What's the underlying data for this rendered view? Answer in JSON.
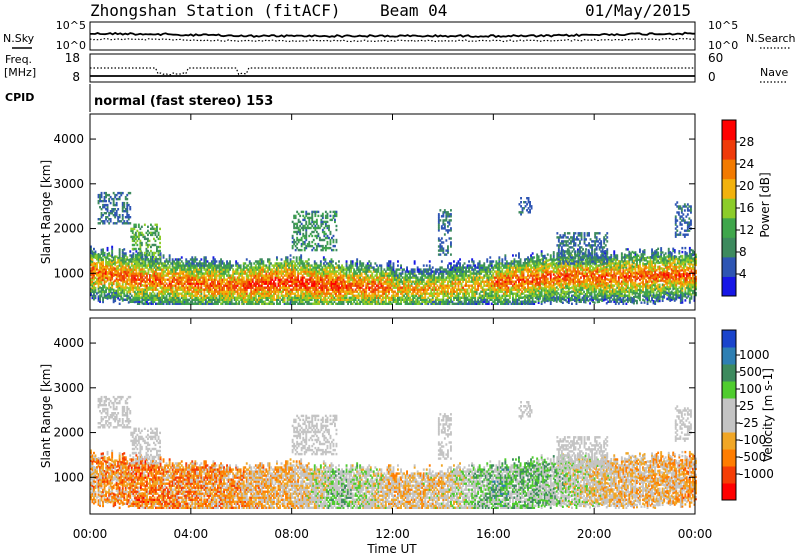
{
  "header": {
    "station": "Zhongshan Station (fitACF)",
    "beam": "Beam 04",
    "date": "01/May/2015"
  },
  "strip_labels": {
    "nsky": "N.Sky",
    "nsearch": "N.Search",
    "freq_line1": "Freq.",
    "freq_line2": "[MHz]",
    "nave": "Nave",
    "cpid": "CPID",
    "cpid_value": "normal (fast stereo) 153"
  },
  "strip_ticks": {
    "noise_left": [
      "10^5",
      "10^0"
    ],
    "noise_right": [
      "10^5",
      "10^0"
    ],
    "freq_left": [
      "18",
      "8"
    ],
    "nave_right": [
      "60",
      "0"
    ]
  },
  "colors": {
    "power_scale": [
      "#1717e6",
      "#2e55b3",
      "#3d8a5e",
      "#3fa64b",
      "#8ccc29",
      "#f2b20d",
      "#f27a00",
      "#ef3a0a",
      "#ff0000"
    ],
    "velocity_scale": [
      "#ff0000",
      "#f53d05",
      "#ff7d00",
      "#f0a626",
      "#c4c4c4",
      "#c4c4c4",
      "#4fcc2e",
      "#3d8a5e",
      "#2e7fb3",
      "#1a44cc"
    ]
  },
  "chart_data": [
    {
      "type": "heatmap",
      "title": "Power",
      "xlabel": "Time UT",
      "ylabel": "Slant Range [km]",
      "colorbar_label": "Power [dB]",
      "x_ticks": [
        "00:00",
        "04:00",
        "08:00",
        "12:00",
        "16:00",
        "20:00",
        "00:00"
      ],
      "x_range_hours": [
        0,
        24
      ],
      "y_ticks": [
        1000,
        2000,
        3000,
        4000
      ],
      "y_range_km": [
        180,
        4560
      ],
      "colorbar_ticks": [
        4,
        8,
        12,
        16,
        20,
        24,
        28
      ],
      "colorbar_range_db": [
        0,
        32
      ],
      "main_band": [
        [
          0,
          1000
        ],
        [
          1,
          950
        ],
        [
          2,
          850
        ],
        [
          3,
          800
        ],
        [
          4,
          760
        ],
        [
          5,
          720
        ],
        [
          6,
          700
        ],
        [
          7,
          760
        ],
        [
          8,
          800
        ],
        [
          9,
          720
        ],
        [
          10,
          700
        ],
        [
          11,
          680
        ],
        [
          12,
          640
        ],
        [
          13,
          620
        ],
        [
          14,
          640
        ],
        [
          15,
          700
        ],
        [
          16,
          760
        ],
        [
          17,
          820
        ],
        [
          18,
          880
        ],
        [
          19,
          920
        ],
        [
          20,
          900
        ],
        [
          21,
          900
        ],
        [
          22,
          920
        ],
        [
          23,
          950
        ]
      ],
      "patches": [
        {
          "t": [
            0.3,
            1.6
          ],
          "r": [
            2100,
            2800
          ],
          "db": [
            4,
            10
          ]
        },
        {
          "t": [
            1.6,
            2.8
          ],
          "r": [
            1300,
            2100
          ],
          "db": [
            8,
            16
          ]
        },
        {
          "t": [
            8.0,
            9.8
          ],
          "r": [
            1500,
            2400
          ],
          "db": [
            6,
            14
          ]
        },
        {
          "t": [
            13.8,
            14.3
          ],
          "r": [
            1400,
            2400
          ],
          "db": [
            4,
            10
          ]
        },
        {
          "t": [
            17.0,
            17.5
          ],
          "r": [
            2300,
            2700
          ],
          "db": [
            4,
            8
          ]
        },
        {
          "t": [
            18.5,
            20.5
          ],
          "r": [
            1200,
            1900
          ],
          "db": [
            4,
            10
          ]
        },
        {
          "t": [
            23.2,
            23.8
          ],
          "r": [
            1800,
            2600
          ],
          "db": [
            4,
            8
          ]
        }
      ]
    },
    {
      "type": "heatmap",
      "title": "Velocity",
      "xlabel": "Time UT",
      "ylabel": "Slant Range [km]",
      "colorbar_label": "Velocity [m s-1]",
      "x_ticks": [
        "00:00",
        "04:00",
        "08:00",
        "12:00",
        "16:00",
        "20:00",
        "00:00"
      ],
      "x_range_hours": [
        0,
        24
      ],
      "y_ticks": [
        1000,
        2000,
        3000,
        4000
      ],
      "y_range_km": [
        180,
        4560
      ],
      "colorbar_ticks": [
        1000,
        500,
        100,
        25,
        -25,
        -100,
        -500,
        -1000
      ],
      "colorbar_range_mps": [
        -1000,
        1000
      ],
      "velocity_trend": [
        [
          0,
          -300
        ],
        [
          2,
          -500
        ],
        [
          4,
          -400
        ],
        [
          6,
          -300
        ],
        [
          8,
          -200
        ],
        [
          10,
          200
        ],
        [
          12,
          -200
        ],
        [
          14,
          -100
        ],
        [
          16,
          300
        ],
        [
          18,
          200
        ],
        [
          20,
          -100
        ],
        [
          22,
          -200
        ],
        [
          24,
          -300
        ]
      ]
    }
  ]
}
